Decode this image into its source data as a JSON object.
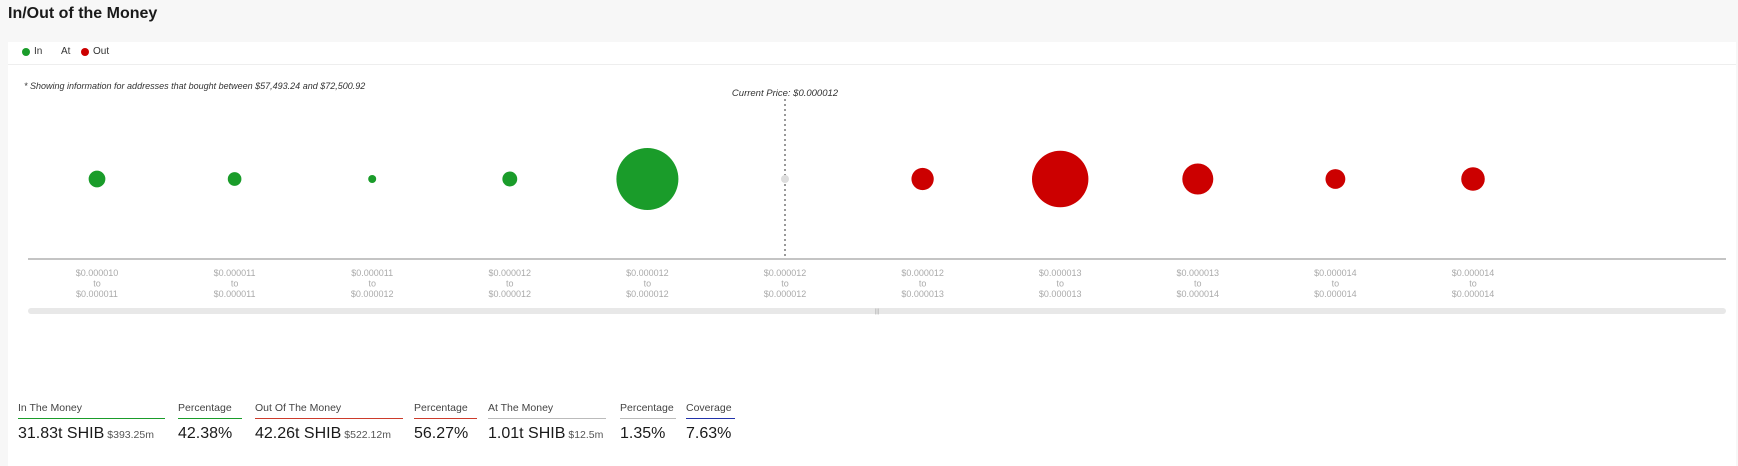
{
  "title": "In/Out of the Money",
  "legend": [
    {
      "label": "In",
      "color": "#1a9c2a"
    },
    {
      "label": "At",
      "color": ""
    },
    {
      "label": "Out",
      "color": "#cc0000"
    }
  ],
  "note": "* Showing information for addresses that bought between $57,493.24 and $72,500.92",
  "current_price_label": "Current Price: $0.000012",
  "colors": {
    "in": "#1a9c2a",
    "at": "#dddddd",
    "out": "#cc0000"
  },
  "chart_data": {
    "type": "scatter",
    "title": "",
    "current_price_index": 5,
    "categories": [
      {
        "from": "$0.000010",
        "to": "$0.000011",
        "status": "in",
        "size": 0.27
      },
      {
        "from": "$0.000011",
        "to": "$0.000011",
        "status": "in",
        "size": 0.22
      },
      {
        "from": "$0.000011",
        "to": "$0.000012",
        "status": "in",
        "size": 0.11
      },
      {
        "from": "$0.000012",
        "to": "$0.000012",
        "status": "in",
        "size": 0.24
      },
      {
        "from": "$0.000012",
        "to": "$0.000012",
        "status": "in",
        "size": 1.0
      },
      {
        "from": "$0.000012",
        "to": "$0.000012",
        "status": "at",
        "size": 0.06
      },
      {
        "from": "$0.000012",
        "to": "$0.000013",
        "status": "out",
        "size": 0.36
      },
      {
        "from": "$0.000013",
        "to": "$0.000013",
        "status": "out",
        "size": 0.91
      },
      {
        "from": "$0.000013",
        "to": "$0.000014",
        "status": "out",
        "size": 0.5
      },
      {
        "from": "$0.000014",
        "to": "$0.000014",
        "status": "out",
        "size": 0.32
      },
      {
        "from": "$0.000014",
        "to": "$0.000014",
        "status": "out",
        "size": 0.38
      }
    ],
    "to_word": "to"
  },
  "stats": [
    {
      "label": "In The Money",
      "value": "31.83t SHIB",
      "sub": "$393.25m",
      "line_color": "#1a9c2a"
    },
    {
      "label": "Percentage",
      "value": "42.38%",
      "sub": "",
      "line_color": "#1a9c2a"
    },
    {
      "label": "Out Of The Money",
      "value": "42.26t SHIB",
      "sub": "$522.12m",
      "line_color": "#cc3b2b"
    },
    {
      "label": "Percentage",
      "value": "56.27%",
      "sub": "",
      "line_color": "#cc3b2b"
    },
    {
      "label": "At The Money",
      "value": "1.01t SHIB",
      "sub": "$12.5m",
      "line_color": "#bbbbbb"
    },
    {
      "label": "Percentage",
      "value": "1.35%",
      "sub": "",
      "line_color": "#bbbbbb"
    },
    {
      "label": "Coverage",
      "value": "7.63%",
      "sub": "",
      "line_color": "#2233aa"
    }
  ]
}
